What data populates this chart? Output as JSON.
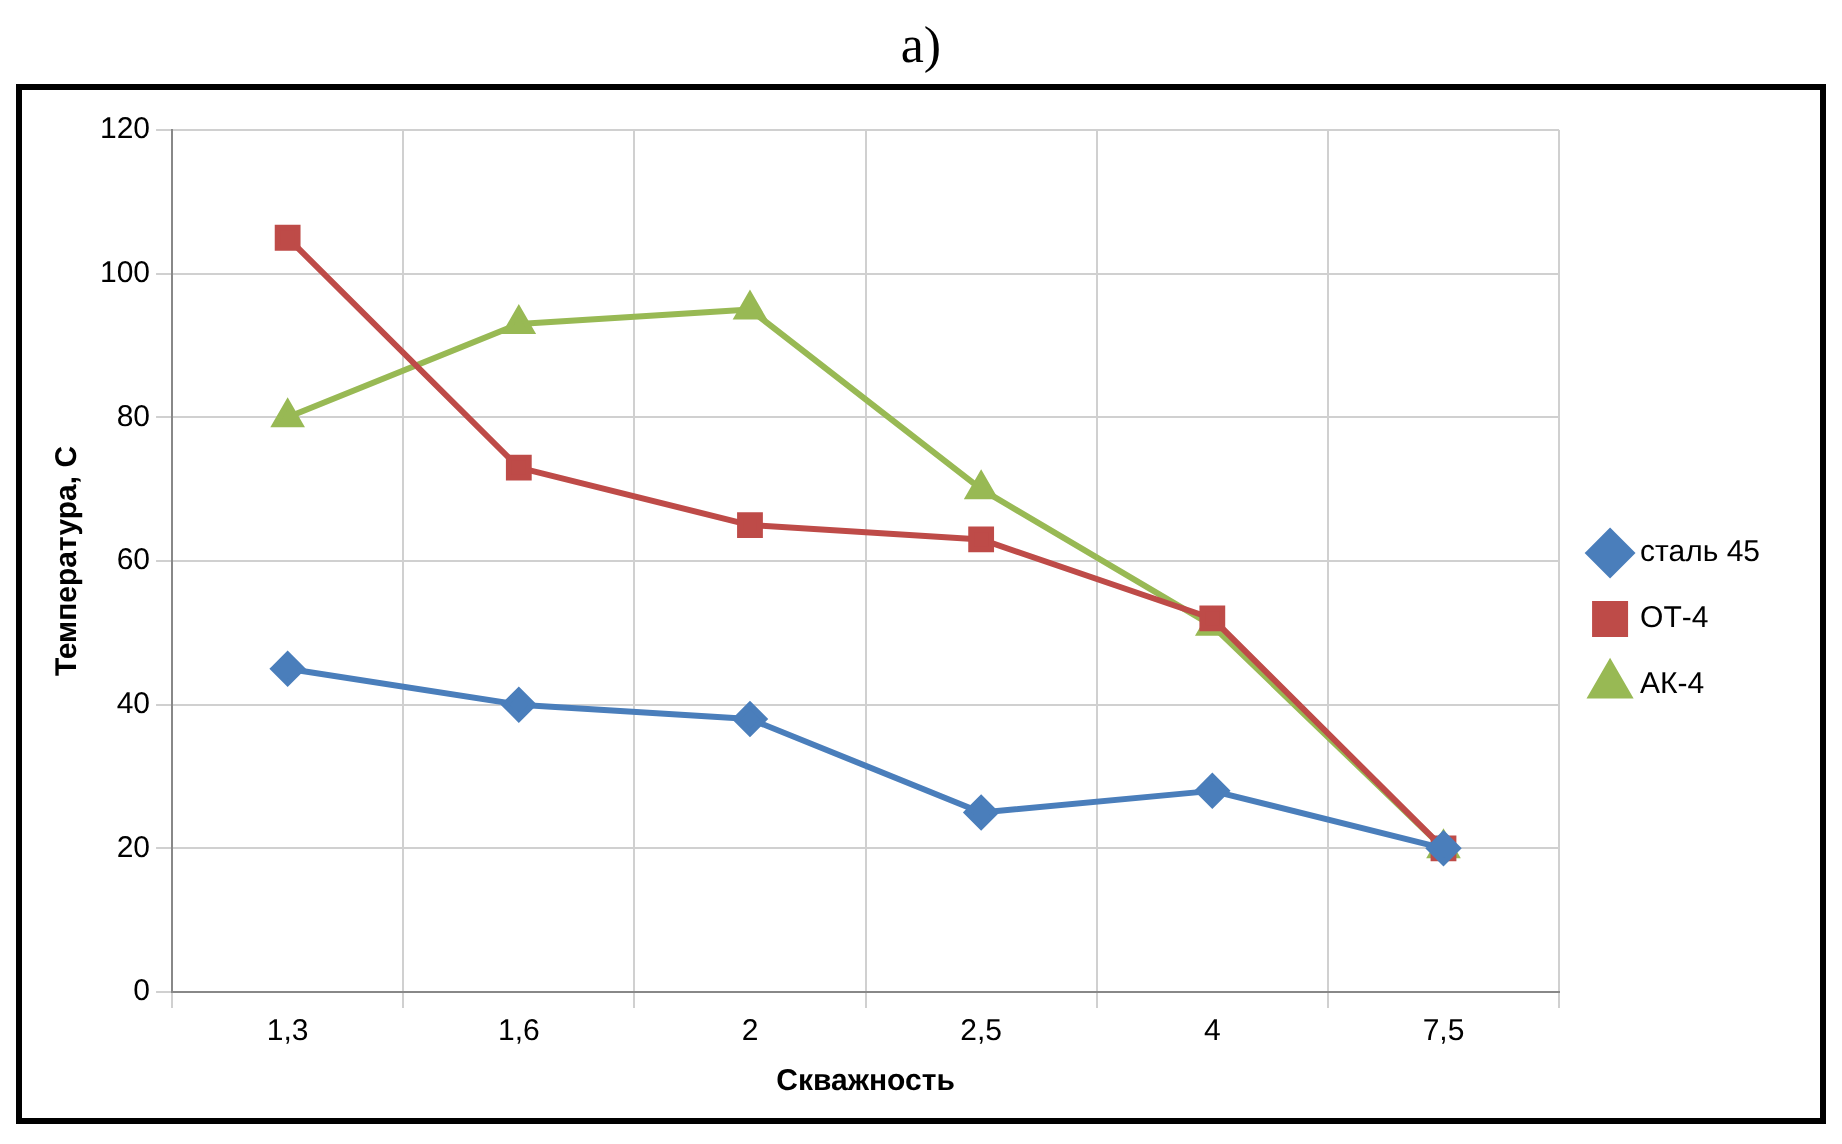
{
  "chart_data": {
    "type": "line",
    "title": "a)",
    "xlabel": "Скважность",
    "ylabel": "Температура, С",
    "categories": [
      "1,3",
      "1,6",
      "2",
      "2,5",
      "4",
      "7,5"
    ],
    "series": [
      {
        "name": "сталь 45",
        "color": "#4a7ebb",
        "marker": "diamond",
        "values": [
          45,
          40,
          38,
          25,
          28,
          20
        ]
      },
      {
        "name": "ОТ-4",
        "color": "#be4b48",
        "marker": "square",
        "values": [
          105,
          73,
          65,
          63,
          52,
          20
        ]
      },
      {
        "name": "АК-4",
        "color": "#98b954",
        "marker": "triangle",
        "values": [
          80,
          93,
          95,
          70,
          51,
          20
        ]
      }
    ],
    "ylim": [
      0,
      120
    ],
    "yticks": [
      0,
      20,
      40,
      60,
      80,
      100,
      120
    ],
    "grid": true,
    "legend": "right",
    "line_style": "solid"
  }
}
